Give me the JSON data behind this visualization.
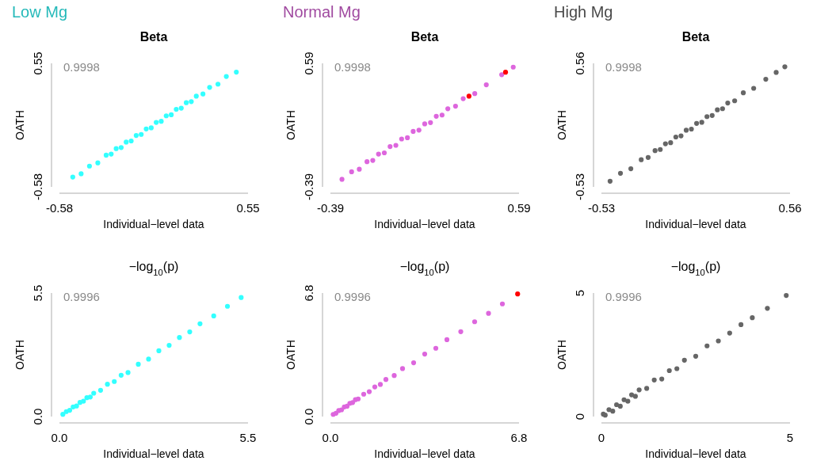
{
  "chart_data": [
    {
      "type": "scatter",
      "subtitle": "Low Mg",
      "title": "Beta",
      "xlabel": "Individual−level data",
      "ylabel": "OATH",
      "annotations": [
        "0.9998"
      ],
      "marker": "circle",
      "grid": false,
      "legend": false,
      "xlim": [
        -0.58,
        0.55
      ],
      "ylim": [
        -0.58,
        0.55
      ],
      "xticks": [
        -0.58,
        0.55
      ],
      "yticks": [
        -0.58,
        0.55
      ],
      "series": [
        {
          "color": "#33ffff",
          "x": [
            -0.5,
            -0.45,
            -0.4,
            -0.35,
            -0.3,
            -0.27,
            -0.24,
            -0.21,
            -0.18,
            -0.15,
            -0.12,
            -0.09,
            -0.06,
            -0.03,
            0,
            0.03,
            0.06,
            0.09,
            0.12,
            0.15,
            0.18,
            0.21,
            0.24,
            0.28,
            0.32,
            0.37,
            0.42,
            0.48
          ],
          "values": [
            -0.49,
            -0.46,
            -0.39,
            -0.36,
            -0.29,
            -0.28,
            -0.23,
            -0.22,
            -0.17,
            -0.16,
            -0.11,
            -0.1,
            -0.05,
            -0.04,
            0.01,
            0.02,
            0.07,
            0.08,
            0.13,
            0.14,
            0.19,
            0.2,
            0.25,
            0.27,
            0.33,
            0.36,
            0.43,
            0.47
          ]
        }
      ]
    },
    {
      "type": "scatter",
      "subtitle": "Normal Mg",
      "title": "Beta",
      "xlabel": "Individual−level data",
      "ylabel": "OATH",
      "annotations": [
        "0.9998"
      ],
      "marker": "circle",
      "grid": false,
      "legend": false,
      "xlim": [
        -0.39,
        0.59
      ],
      "ylim": [
        -0.39,
        0.59
      ],
      "xticks": [
        -0.39,
        0.59
      ],
      "yticks": [
        -0.39,
        0.59
      ],
      "series": [
        {
          "color": "#dd66dd",
          "x": [
            -0.33,
            -0.28,
            -0.24,
            -0.2,
            -0.17,
            -0.14,
            -0.11,
            -0.08,
            -0.05,
            -0.02,
            0.01,
            0.04,
            0.07,
            0.1,
            0.13,
            0.16,
            0.19,
            0.22,
            0.26,
            0.3,
            0.36,
            0.42,
            0.5,
            0.56
          ],
          "values": [
            -0.33,
            -0.27,
            -0.25,
            -0.19,
            -0.18,
            -0.13,
            -0.12,
            -0.07,
            -0.06,
            -0.01,
            0.0,
            0.05,
            0.06,
            0.11,
            0.12,
            0.17,
            0.18,
            0.23,
            0.25,
            0.31,
            0.35,
            0.42,
            0.5,
            0.56
          ]
        },
        {
          "color": "#ff0000",
          "x": [
            0.33,
            0.52
          ],
          "values": [
            0.33,
            0.52
          ]
        }
      ]
    },
    {
      "type": "scatter",
      "subtitle": "High Mg",
      "title": "Beta",
      "xlabel": "Individual−level data",
      "ylabel": "OATH",
      "annotations": [
        "0.9998"
      ],
      "marker": "circle",
      "grid": false,
      "legend": false,
      "xlim": [
        -0.53,
        0.56
      ],
      "ylim": [
        -0.53,
        0.56
      ],
      "xticks": [
        -0.53,
        0.56
      ],
      "yticks": [
        -0.53,
        0.56
      ],
      "series": [
        {
          "color": "#666666",
          "x": [
            -0.48,
            -0.42,
            -0.36,
            -0.3,
            -0.26,
            -0.22,
            -0.19,
            -0.16,
            -0.13,
            -0.1,
            -0.07,
            -0.04,
            -0.01,
            0.02,
            0.05,
            0.08,
            0.11,
            0.14,
            0.17,
            0.2,
            0.24,
            0.29,
            0.35,
            0.42,
            0.48,
            0.53
          ],
          "values": [
            -0.48,
            -0.41,
            -0.37,
            -0.29,
            -0.27,
            -0.21,
            -0.2,
            -0.15,
            -0.14,
            -0.09,
            -0.08,
            -0.03,
            -0.02,
            0.03,
            0.04,
            0.09,
            0.1,
            0.15,
            0.16,
            0.21,
            0.23,
            0.3,
            0.34,
            0.42,
            0.48,
            0.53
          ]
        }
      ]
    },
    {
      "type": "scatter",
      "title": "−log$_{10}$(p)",
      "xlabel": "Individual−level data",
      "ylabel": "OATH",
      "annotations": [
        "0.9996"
      ],
      "marker": "circle",
      "grid": false,
      "legend": false,
      "xlim": [
        0,
        5.5
      ],
      "ylim": [
        0,
        5.5
      ],
      "xticks": [
        {
          "value": 0,
          "label": "0.0"
        },
        5.5
      ],
      "yticks": [
        {
          "value": 0,
          "label": "0.0"
        },
        5.5
      ],
      "series": [
        {
          "color": "#33ffff",
          "x": [
            0.1,
            0.2,
            0.3,
            0.4,
            0.5,
            0.6,
            0.7,
            0.8,
            0.9,
            1.0,
            1.2,
            1.4,
            1.6,
            1.8,
            2.0,
            2.3,
            2.6,
            2.9,
            3.2,
            3.5,
            3.8,
            4.1,
            4.5,
            4.9,
            5.3
          ],
          "values": [
            0.1,
            0.22,
            0.28,
            0.43,
            0.47,
            0.63,
            0.68,
            0.84,
            0.87,
            1.04,
            1.17,
            1.44,
            1.56,
            1.84,
            1.96,
            2.33,
            2.56,
            2.93,
            3.17,
            3.52,
            3.77,
            4.13,
            4.48,
            4.91,
            5.3
          ]
        }
      ]
    },
    {
      "type": "scatter",
      "title": "−log$_{10}$(p)",
      "xlabel": "Individual−level data",
      "ylabel": "OATH",
      "annotations": [
        "0.9996"
      ],
      "marker": "circle",
      "grid": false,
      "legend": false,
      "xlim": [
        0,
        6.8
      ],
      "ylim": [
        0,
        6.8
      ],
      "xticks": [
        {
          "value": 0,
          "label": "0.0"
        },
        6.8
      ],
      "yticks": [
        {
          "value": 0,
          "label": "0.0"
        },
        6.8
      ],
      "series": [
        {
          "color": "#dd66dd",
          "x": [
            0.1,
            0.2,
            0.3,
            0.4,
            0.5,
            0.6,
            0.7,
            0.8,
            0.9,
            1.0,
            1.2,
            1.4,
            1.6,
            1.8,
            2.0,
            2.3,
            2.6,
            3.0,
            3.4,
            3.8,
            4.2,
            4.7,
            5.2,
            5.7,
            6.2
          ],
          "values": [
            0.12,
            0.18,
            0.33,
            0.37,
            0.53,
            0.57,
            0.73,
            0.77,
            0.93,
            0.97,
            1.23,
            1.37,
            1.63,
            1.77,
            2.04,
            2.26,
            2.64,
            2.96,
            3.44,
            3.76,
            4.23,
            4.67,
            5.22,
            5.68,
            6.2
          ]
        },
        {
          "color": "#ff0000",
          "x": [
            6.75
          ],
          "values": [
            6.75
          ]
        }
      ]
    },
    {
      "type": "scatter",
      "title": "−log$_{10}$(p)",
      "xlabel": "Individual−level data",
      "ylabel": "OATH",
      "annotations": [
        "0.9996"
      ],
      "marker": "circle",
      "grid": false,
      "legend": false,
      "xlim": [
        0,
        5
      ],
      "ylim": [
        0,
        5
      ],
      "xticks": [
        0,
        5
      ],
      "yticks": [
        0,
        5
      ],
      "series": [
        {
          "color": "#666666",
          "x": [
            0.05,
            0.1,
            0.2,
            0.3,
            0.4,
            0.5,
            0.6,
            0.7,
            0.8,
            0.9,
            1.0,
            1.2,
            1.4,
            1.6,
            1.8,
            2.0,
            2.2,
            2.5,
            2.8,
            3.1,
            3.4,
            3.7,
            4.0,
            4.4,
            4.9
          ],
          "values": [
            0.1,
            0.06,
            0.28,
            0.22,
            0.48,
            0.42,
            0.68,
            0.62,
            0.88,
            0.82,
            1.08,
            1.14,
            1.48,
            1.52,
            1.86,
            1.94,
            2.28,
            2.44,
            2.86,
            3.06,
            3.38,
            3.72,
            4.0,
            4.38,
            4.9
          ]
        }
      ]
    }
  ]
}
